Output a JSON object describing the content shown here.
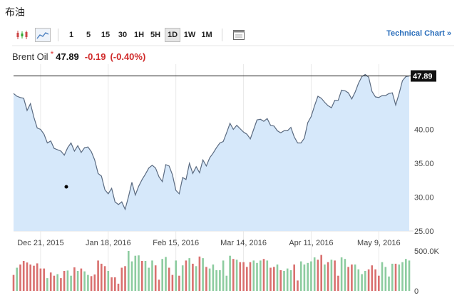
{
  "page": {
    "title": "布油"
  },
  "toolbar": {
    "chart_type_icons": [
      "candlestick-icon",
      "line-chart-icon"
    ],
    "intervals": [
      {
        "label": "1",
        "active": false
      },
      {
        "label": "5",
        "active": false
      },
      {
        "label": "15",
        "active": false
      },
      {
        "label": "30",
        "active": false
      },
      {
        "label": "1H",
        "active": false
      },
      {
        "label": "5H",
        "active": false
      },
      {
        "label": "1D",
        "active": true
      },
      {
        "label": "1W",
        "active": false
      },
      {
        "label": "1M",
        "active": false
      }
    ],
    "extra_icon": "window-icon",
    "technical_chart_label": "Technical Chart »"
  },
  "quote": {
    "name": "Brent Oil",
    "star": "*",
    "price": "47.89",
    "change": "-0.19",
    "change_pct": "(-0.40%)"
  },
  "colors": {
    "line": "#5a6a80",
    "area_fill": "#d6e8fa",
    "up_volume": "#8dcca0",
    "down_volume": "#d9706f",
    "price_tag_bg": "#111111",
    "negative": "#d02a2a",
    "link": "#2a6ebb"
  },
  "chart_data": [
    {
      "type": "area",
      "title": "",
      "ylabel": "",
      "y_ticks": [
        25.0,
        30.0,
        35.0,
        40.0
      ],
      "y_tick_labels": [
        "25.00",
        "30.00",
        "35.00",
        "40.00"
      ],
      "ylim": [
        25.0,
        49.0
      ],
      "x_tick_labels": [
        "Dec 21, 2015",
        "Jan 18, 2016",
        "Feb 15, 2016",
        "Mar 14, 2016",
        "Apr 11, 2016",
        "May 9, 2016"
      ],
      "x_tick_index": [
        8,
        28,
        48,
        68,
        88,
        108
      ],
      "grid": "vertical",
      "last_price_label": "47.89",
      "last_price": 47.89,
      "series": [
        {
          "values": [
            45.3,
            44.9,
            44.7,
            44.6,
            42.8,
            43.8,
            41.8,
            40.2,
            40.0,
            39.3,
            38.0,
            38.3,
            37.2,
            37.0,
            36.8,
            36.2,
            37.3,
            38.0,
            36.8,
            37.6,
            36.6,
            37.3,
            37.4,
            36.7,
            35.5,
            33.5,
            33.1,
            31.1,
            30.5,
            31.3,
            29.3,
            28.9,
            29.3,
            28.2,
            30.1,
            32.2,
            30.3,
            31.6,
            32.6,
            33.4,
            34.3,
            34.7,
            34.3,
            33.0,
            32.3,
            34.8,
            34.6,
            33.3,
            31.0,
            30.5,
            32.9,
            32.6,
            35.0,
            33.5,
            34.5,
            33.6,
            35.5,
            34.6,
            35.8,
            36.5,
            37.3,
            38.0,
            38.2,
            39.5,
            40.9,
            40.0,
            40.6,
            40.1,
            39.6,
            39.3,
            38.6,
            40.0,
            41.4,
            41.5,
            41.2,
            41.6,
            40.6,
            40.5,
            39.8,
            39.5,
            39.8,
            39.8,
            40.3,
            38.9,
            38.0,
            38.0,
            38.7,
            41.0,
            41.9,
            43.5,
            44.9,
            44.6,
            44.0,
            43.5,
            43.2,
            44.3,
            44.3,
            45.8,
            45.7,
            45.4,
            44.5,
            45.5,
            46.8,
            47.8,
            48.1,
            47.7,
            45.6,
            44.8,
            44.7,
            45.0,
            45.0,
            45.3,
            45.4,
            43.6,
            45.3,
            47.2,
            47.8,
            47.9
          ]
        }
      ]
    },
    {
      "type": "bar",
      "title": "",
      "ylim": [
        0,
        500000
      ],
      "y_tick_labels": [
        "500.0K",
        "0"
      ],
      "volumes": [
        200000,
        290000,
        330000,
        375000,
        355000,
        330000,
        315000,
        345000,
        280000,
        280000,
        160000,
        230000,
        190000,
        210000,
        160000,
        250000,
        255000,
        190000,
        295000,
        250000,
        280000,
        245000,
        200000,
        185000,
        205000,
        380000,
        340000,
        310000,
        250000,
        170000,
        170000,
        90000,
        290000,
        310000,
        500000,
        370000,
        440000,
        445000,
        375000,
        375000,
        290000,
        380000,
        320000,
        140000,
        400000,
        425000,
        290000,
        200000,
        380000,
        190000,
        320000,
        380000,
        410000,
        340000,
        310000,
        430000,
        410000,
        300000,
        280000,
        330000,
        260000,
        260000,
        380000,
        190000,
        440000,
        400000,
        390000,
        360000,
        360000,
        300000,
        360000,
        380000,
        350000,
        380000,
        400000,
        380000,
        290000,
        300000,
        330000,
        260000,
        250000,
        280000,
        260000,
        330000,
        130000,
        370000,
        330000,
        350000,
        370000,
        420000,
        390000,
        450000,
        330000,
        360000,
        390000,
        380000,
        190000,
        420000,
        400000,
        300000,
        330000,
        330000,
        270000,
        210000,
        250000,
        270000,
        320000,
        270000,
        190000,
        360000,
        300000,
        180000,
        340000,
        340000,
        330000,
        360000,
        400000,
        380000
      ],
      "direction": [
        "down",
        "up",
        "down",
        "down",
        "down",
        "down",
        "down",
        "down",
        "down",
        "down",
        "up",
        "down",
        "down",
        "up",
        "down",
        "down",
        "up",
        "up",
        "down",
        "up",
        "down",
        "up",
        "up",
        "down",
        "down",
        "down",
        "down",
        "down",
        "up",
        "down",
        "down",
        "down",
        "down",
        "down",
        "up",
        "up",
        "up",
        "up",
        "down",
        "up",
        "up",
        "up",
        "down",
        "down",
        "up",
        "up",
        "down",
        "down",
        "up",
        "down",
        "up",
        "down",
        "up",
        "down",
        "up",
        "down",
        "up",
        "down",
        "up",
        "up",
        "up",
        "up",
        "up",
        "up",
        "up",
        "down",
        "up",
        "down",
        "down",
        "down",
        "down",
        "up",
        "up",
        "up",
        "down",
        "up",
        "down",
        "down",
        "up",
        "down",
        "up",
        "up",
        "up",
        "down",
        "down",
        "up",
        "up",
        "up",
        "up",
        "up",
        "down",
        "down",
        "up",
        "down",
        "up",
        "down",
        "down",
        "up",
        "up",
        "down",
        "down",
        "up",
        "up",
        "up",
        "up",
        "down",
        "down",
        "down",
        "down",
        "up",
        "up",
        "up",
        "up",
        "down",
        "up",
        "up",
        "up",
        "up"
      ]
    }
  ]
}
